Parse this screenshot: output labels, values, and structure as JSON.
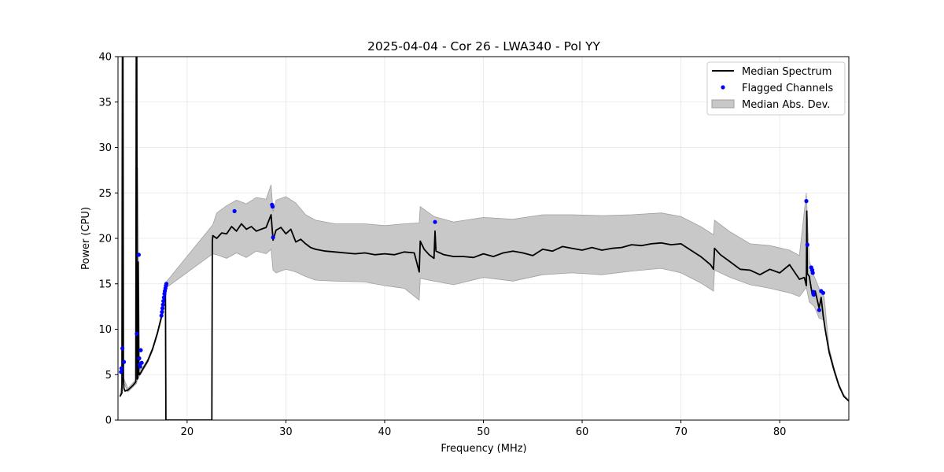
{
  "chart_data": {
    "type": "line",
    "title": "2025-04-04 - Cor 26 - LWA340 - Pol YY",
    "xlabel": "Frequency (MHz)",
    "ylabel": "Power (CPU)",
    "xlim": [
      13.0,
      87.0
    ],
    "ylim": [
      0,
      40
    ],
    "xticks": [
      20,
      30,
      40,
      50,
      60,
      70,
      80
    ],
    "yticks": [
      0,
      5,
      10,
      15,
      20,
      25,
      30,
      35,
      40
    ],
    "grid": true,
    "legend_position": "top-right",
    "colors": {
      "median": "#000000",
      "flagged": "#0000ff",
      "mad_fill": "#c8c8c8",
      "mad_edge": "#a0a0a0"
    },
    "series": [
      {
        "name": "Median Spectrum",
        "kind": "line",
        "x": [
          13.2,
          13.4,
          13.45,
          13.5,
          13.55,
          13.6,
          13.7,
          14.0,
          14.5,
          14.8,
          14.85,
          14.9,
          14.95,
          15.0,
          15.05,
          15.1,
          15.15,
          15.2,
          15.5,
          16.0,
          16.5,
          17.0,
          17.5,
          17.8,
          17.85,
          17.9,
          20.0,
          22.5,
          22.55,
          22.6,
          23.0,
          23.5,
          24.0,
          24.5,
          25.0,
          25.5,
          26.0,
          26.5,
          27.0,
          27.5,
          28.0,
          28.5,
          28.7,
          28.8,
          29.0,
          29.5,
          30.0,
          30.5,
          31.0,
          31.5,
          32.0,
          32.5,
          33.0,
          34.0,
          35.0,
          36.0,
          37.0,
          38.0,
          39.0,
          40.0,
          41.0,
          42.0,
          43.0,
          43.5,
          43.6,
          44.0,
          44.5,
          45.0,
          45.1,
          45.2,
          46.0,
          47.0,
          48.0,
          49.0,
          50.0,
          51.0,
          52.0,
          53.0,
          54.0,
          55.0,
          56.0,
          57.0,
          58.0,
          59.0,
          60.0,
          61.0,
          62.0,
          63.0,
          64.0,
          65.0,
          66.0,
          67.0,
          68.0,
          69.0,
          70.0,
          71.0,
          72.0,
          73.0,
          73.3,
          73.4,
          74.0,
          75.0,
          76.0,
          77.0,
          78.0,
          79.0,
          80.0,
          81.0,
          82.0,
          82.5,
          82.7,
          82.75,
          82.8,
          83.0,
          83.3,
          83.6,
          84.0,
          84.2,
          84.4,
          84.6,
          85.0,
          85.5,
          86.0,
          86.5,
          87.0
        ],
        "y": [
          2.6,
          3.0,
          40.0,
          40.0,
          4.5,
          3.5,
          3.2,
          3.3,
          3.8,
          4.2,
          40.0,
          40.0,
          4.5,
          4.6,
          17.4,
          5.0,
          5.2,
          5.0,
          5.6,
          6.5,
          7.8,
          9.6,
          11.8,
          14.9,
          0.0,
          0.0,
          0.0,
          0.0,
          19.6,
          20.3,
          20.0,
          20.6,
          20.5,
          21.3,
          20.8,
          21.6,
          21.0,
          21.3,
          20.8,
          21.0,
          21.2,
          22.6,
          19.8,
          20.2,
          20.9,
          21.2,
          20.5,
          21.0,
          19.6,
          19.9,
          19.4,
          19.0,
          18.8,
          18.6,
          18.5,
          18.4,
          18.3,
          18.4,
          18.2,
          18.3,
          18.2,
          18.5,
          18.4,
          16.3,
          19.7,
          18.8,
          18.2,
          17.8,
          20.8,
          18.6,
          18.2,
          18.0,
          18.0,
          17.9,
          18.3,
          18.0,
          18.4,
          18.6,
          18.4,
          18.1,
          18.8,
          18.6,
          19.1,
          18.9,
          18.7,
          19.0,
          18.7,
          18.9,
          19.0,
          19.3,
          19.2,
          19.4,
          19.5,
          19.3,
          19.4,
          18.7,
          18.0,
          17.1,
          16.6,
          18.9,
          18.2,
          17.4,
          16.6,
          16.5,
          16.0,
          16.6,
          16.2,
          17.1,
          15.5,
          15.7,
          14.8,
          23.0,
          16.1,
          15.8,
          13.8,
          14.2,
          12.3,
          13.5,
          11.5,
          10.0,
          7.5,
          5.5,
          3.8,
          2.6,
          2.1
        ]
      },
      {
        "name": "Flagged Channels",
        "kind": "scatter",
        "x": [
          13.3,
          13.35,
          13.45,
          13.6,
          14.9,
          15.1,
          15.15,
          15.2,
          15.25,
          15.3,
          15.4,
          17.4,
          17.45,
          17.5,
          17.55,
          17.6,
          17.65,
          17.7,
          17.75,
          17.8,
          17.85,
          17.9,
          24.8,
          28.6,
          28.65,
          28.7,
          45.1,
          82.7,
          82.8,
          83.2,
          83.3,
          83.35,
          83.4,
          83.45,
          84.0,
          84.2,
          84.4
        ],
        "y": [
          5.3,
          5.7,
          7.9,
          6.4,
          9.5,
          18.2,
          6.8,
          6.1,
          5.9,
          7.7,
          6.3,
          11.5,
          11.9,
          12.3,
          12.7,
          13.1,
          13.5,
          13.9,
          14.2,
          14.5,
          14.8,
          15.0,
          23.0,
          23.7,
          23.5,
          20.1,
          21.8,
          24.1,
          19.3,
          16.8,
          16.5,
          16.2,
          14.1,
          13.8,
          12.1,
          14.2,
          14.0
        ]
      },
      {
        "name": "Median Abs. Dev.",
        "kind": "band",
        "x": [
          13.2,
          13.5,
          14.0,
          14.85,
          15.0,
          15.2,
          15.5,
          16.0,
          16.5,
          17.0,
          17.5,
          17.8,
          22.6,
          23.0,
          24.0,
          25.0,
          26.0,
          27.0,
          28.0,
          28.5,
          28.7,
          29.0,
          30.0,
          31.0,
          32.0,
          33.0,
          35.0,
          38.0,
          40.0,
          42.0,
          43.5,
          43.6,
          45.0,
          47.0,
          50.0,
          53.0,
          56.0,
          59.0,
          62.0,
          65.0,
          68.0,
          70.0,
          72.0,
          73.3,
          73.4,
          75.0,
          77.0,
          79.0,
          81.0,
          82.0,
          82.7,
          83.0,
          83.5,
          84.0,
          84.5,
          85.0,
          85.5,
          86.0,
          86.5,
          87.0
        ],
        "lower": [
          2.5,
          4.3,
          3.1,
          4.0,
          4.5,
          4.9,
          5.4,
          6.3,
          7.6,
          9.4,
          11.5,
          14.5,
          18.3,
          18.2,
          17.8,
          18.4,
          17.9,
          18.6,
          18.3,
          18.8,
          16.5,
          16.2,
          16.6,
          16.3,
          15.8,
          15.4,
          15.3,
          15.2,
          14.8,
          14.5,
          13.2,
          15.6,
          15.3,
          14.9,
          15.7,
          15.3,
          16.0,
          16.2,
          16.0,
          16.4,
          16.7,
          16.2,
          15.1,
          14.2,
          16.5,
          15.7,
          14.9,
          14.5,
          14.0,
          13.6,
          14.6,
          13.0,
          12.5,
          11.2,
          11.0,
          7.3,
          5.3,
          3.7,
          2.6,
          2.0
        ],
        "upper": [
          2.8,
          4.8,
          3.5,
          4.5,
          27.8,
          5.5,
          5.8,
          6.7,
          8.0,
          9.8,
          12.1,
          15.1,
          21.5,
          22.8,
          23.6,
          24.2,
          23.8,
          24.5,
          24.3,
          25.9,
          22.9,
          24.2,
          24.6,
          23.9,
          22.6,
          22.0,
          21.6,
          21.6,
          21.4,
          21.6,
          21.7,
          23.5,
          22.4,
          21.8,
          22.3,
          22.1,
          22.6,
          22.6,
          22.5,
          22.6,
          22.8,
          22.4,
          21.3,
          20.4,
          22.0,
          20.7,
          19.4,
          19.2,
          18.7,
          18.1,
          25.0,
          17.5,
          15.8,
          14.5,
          13.6,
          8.0,
          5.8,
          4.0,
          2.8,
          2.2
        ]
      }
    ]
  }
}
